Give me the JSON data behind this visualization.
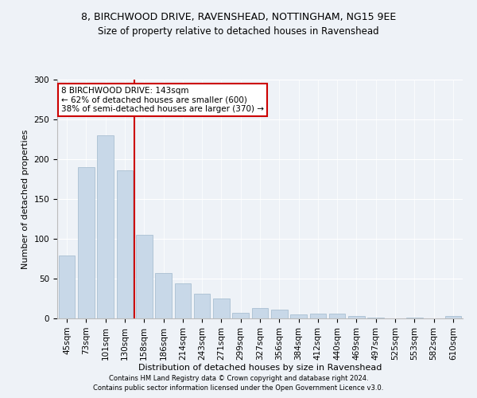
{
  "title1": "8, BIRCHWOOD DRIVE, RAVENSHEAD, NOTTINGHAM, NG15 9EE",
  "title2": "Size of property relative to detached houses in Ravenshead",
  "xlabel": "Distribution of detached houses by size in Ravenshead",
  "ylabel": "Number of detached properties",
  "categories": [
    "45sqm",
    "73sqm",
    "101sqm",
    "130sqm",
    "158sqm",
    "186sqm",
    "214sqm",
    "243sqm",
    "271sqm",
    "299sqm",
    "327sqm",
    "356sqm",
    "384sqm",
    "412sqm",
    "440sqm",
    "469sqm",
    "497sqm",
    "525sqm",
    "553sqm",
    "582sqm",
    "610sqm"
  ],
  "values": [
    79,
    190,
    230,
    186,
    105,
    57,
    44,
    31,
    25,
    7,
    13,
    11,
    5,
    6,
    6,
    3,
    1,
    0,
    1,
    0,
    3
  ],
  "bar_color": "#c8d8e8",
  "bar_edge_color": "#a0b8cc",
  "vline_x": 3.5,
  "vline_color": "#cc0000",
  "annotation_text": "8 BIRCHWOOD DRIVE: 143sqm\n← 62% of detached houses are smaller (600)\n38% of semi-detached houses are larger (370) →",
  "annotation_box_color": "#ffffff",
  "annotation_box_edge": "#cc0000",
  "footer1": "Contains HM Land Registry data © Crown copyright and database right 2024.",
  "footer2": "Contains public sector information licensed under the Open Government Licence v3.0.",
  "ylim": [
    0,
    300
  ],
  "yticks": [
    0,
    50,
    100,
    150,
    200,
    250,
    300
  ],
  "background_color": "#eef2f7",
  "plot_bg_color": "#eef2f7",
  "title1_fontsize": 9,
  "title2_fontsize": 8.5,
  "xlabel_fontsize": 8,
  "ylabel_fontsize": 8,
  "tick_fontsize": 7.5,
  "annotation_fontsize": 7.5,
  "footer_fontsize": 6
}
